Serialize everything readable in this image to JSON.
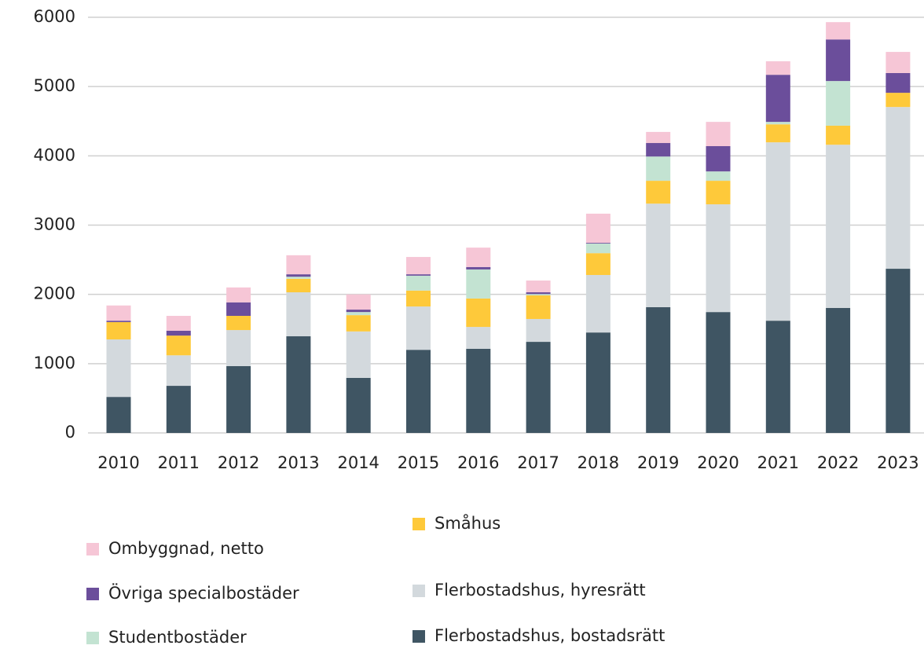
{
  "chart_data": {
    "type": "stacked_bar",
    "categories": [
      "2010",
      "2011",
      "2012",
      "2013",
      "2014",
      "2015",
      "2016",
      "2017",
      "2018",
      "2019",
      "2020",
      "2021",
      "2022",
      "2023"
    ],
    "series": [
      {
        "name": "Flerbostadshus, bostadsrätt",
        "color": "#3f5563",
        "values": [
          520,
          680,
          965,
          1395,
          795,
          1200,
          1215,
          1315,
          1450,
          1815,
          1745,
          1620,
          1805,
          2370
        ]
      },
      {
        "name": "Flerbostadshus, hyresrätt",
        "color": "#d3d9dd",
        "values": [
          830,
          440,
          520,
          635,
          670,
          625,
          315,
          330,
          830,
          1495,
          1555,
          2575,
          2355,
          2335
        ]
      },
      {
        "name": "Småhus",
        "color": "#fec93a",
        "values": [
          250,
          285,
          205,
          195,
          235,
          230,
          410,
          340,
          315,
          330,
          340,
          260,
          275,
          205
        ]
      },
      {
        "name": "Studentbostäder",
        "color": "#c3e3d2",
        "values": [
          0,
          0,
          0,
          30,
          45,
          215,
          420,
          20,
          140,
          350,
          135,
          35,
          645,
          0
        ]
      },
      {
        "name": "Övriga specialbostäder",
        "color": "#6b4e9b",
        "values": [
          20,
          70,
          195,
          35,
          35,
          20,
          35,
          25,
          10,
          195,
          365,
          680,
          600,
          285
        ]
      },
      {
        "name": "Ombyggnad, netto",
        "color": "#f6c6d6",
        "values": [
          220,
          215,
          215,
          275,
          220,
          250,
          280,
          170,
          420,
          160,
          350,
          195,
          250,
          305
        ]
      }
    ],
    "ylim": [
      0,
      6000
    ],
    "yticks": [
      0,
      1000,
      2000,
      3000,
      4000,
      5000,
      6000
    ],
    "grid": true
  }
}
